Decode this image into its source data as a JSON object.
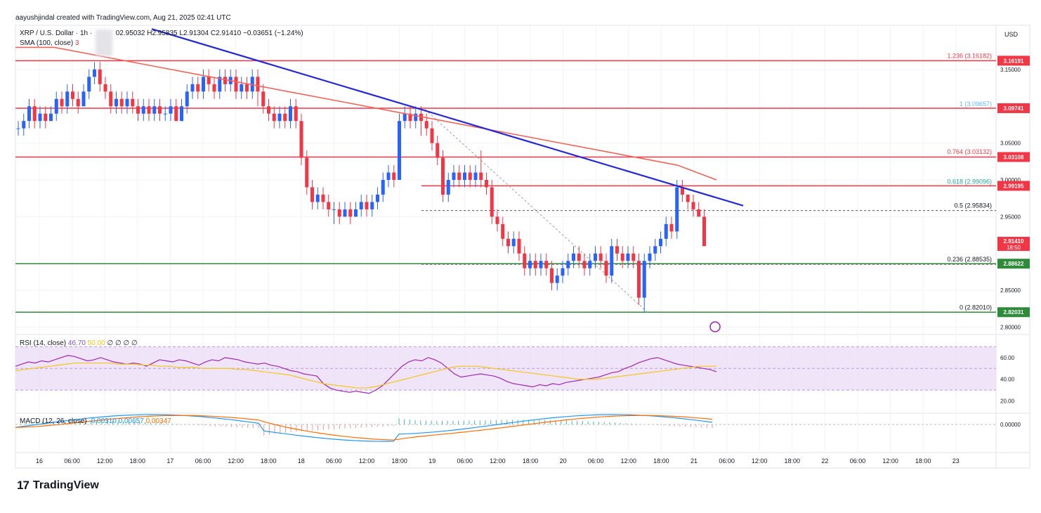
{
  "header": {
    "attribution": "aayushjindal created with TradingView.com, Aug 21, 2025 02:41 UTC"
  },
  "legend": {
    "symbol": "XRP / U.S. Dollar · 1h ·",
    "ohlc": "02.95032  H2.95835  L2.91304  C2.91410  −0.03651 (−1.24%)",
    "sma": "SMA (100, close)",
    "sma_val": "3"
  },
  "currency": "USD",
  "brand": {
    "logo": "17",
    "name": "TradingView"
  },
  "colors": {
    "up": "#2962ff",
    "down": "#f23645",
    "sma": "#f0645a",
    "trend": "#2429d6",
    "support": "#2e8b3a",
    "fib": "#808080",
    "rsi": "#9c27b0",
    "rsi_band": "#ead9f7",
    "macd": "#2196f3",
    "signal": "#ff6d00"
  },
  "chart_data": [
    {
      "type": "candlestick",
      "title": "XRP / U.S. Dollar · 1h",
      "ylim": [
        2.79,
        3.21
      ],
      "price_ticks": [
        "3.15000",
        "3.05000",
        "3.00000",
        "2.95000",
        "2.85000",
        "2.80000"
      ],
      "x_ticks": [
        "16",
        "06:00",
        "12:00",
        "18:00",
        "17",
        "06:00",
        "12:00",
        "18:00",
        "18",
        "06:00",
        "12:00",
        "18:00",
        "19",
        "06:00",
        "12:00",
        "18:00",
        "20",
        "06:00",
        "12:00",
        "18:00",
        "21",
        "06:00",
        "12:00",
        "18:00",
        "22",
        "06:00",
        "12:00",
        "18:00",
        "23"
      ],
      "horizontal_levels": [
        {
          "value": 3.16191,
          "label": "3.16191",
          "color": "red"
        },
        {
          "value": 3.09741,
          "label": "3.09741",
          "color": "red"
        },
        {
          "value": 3.03108,
          "label": "3.03108",
          "color": "red"
        },
        {
          "value": 2.99195,
          "label": "2.99195",
          "color": "red"
        },
        {
          "value": 2.88622,
          "label": "2.88622",
          "color": "green"
        },
        {
          "value": 2.82031,
          "label": "2.82031",
          "color": "green"
        }
      ],
      "fib_levels": [
        {
          "label": "1.236 (3.16182)",
          "value": 3.16182
        },
        {
          "label": "1 (3.09657)",
          "value": 3.09657
        },
        {
          "label": "0.764 (3.03132)",
          "value": 3.03132
        },
        {
          "label": "0.618 (2.99096)",
          "value": 2.99096
        },
        {
          "label": "0.5 (2.95834)",
          "value": 2.95834
        },
        {
          "label": "0.236 (2.88535)",
          "value": 2.88535
        },
        {
          "label": "0 (2.82010)",
          "value": 2.8201
        }
      ],
      "last_price": {
        "value": 2.9141,
        "label": "2.91410",
        "countdown": "18:50"
      },
      "candles": [
        [
          3.07,
          3.07,
          3.06,
          3.08
        ],
        [
          3.07,
          3.08,
          3.06,
          3.09
        ],
        [
          3.08,
          3.1,
          3.07,
          3.11
        ],
        [
          3.1,
          3.08,
          3.07,
          3.11
        ],
        [
          3.08,
          3.09,
          3.07,
          3.1
        ],
        [
          3.09,
          3.08,
          3.07,
          3.1
        ],
        [
          3.08,
          3.09,
          3.08,
          3.1
        ],
        [
          3.09,
          3.11,
          3.08,
          3.12
        ],
        [
          3.11,
          3.1,
          3.09,
          3.12
        ],
        [
          3.1,
          3.12,
          3.09,
          3.13
        ],
        [
          3.12,
          3.11,
          3.1,
          3.13
        ],
        [
          3.11,
          3.1,
          3.09,
          3.12
        ],
        [
          3.1,
          3.12,
          3.1,
          3.13
        ],
        [
          3.12,
          3.14,
          3.11,
          3.15
        ],
        [
          3.14,
          3.15,
          3.13,
          3.16
        ],
        [
          3.15,
          3.13,
          3.12,
          3.16
        ],
        [
          3.13,
          3.12,
          3.11,
          3.14
        ],
        [
          3.12,
          3.1,
          3.09,
          3.13
        ],
        [
          3.1,
          3.11,
          3.09,
          3.12
        ],
        [
          3.11,
          3.1,
          3.09,
          3.12
        ],
        [
          3.1,
          3.11,
          3.09,
          3.12
        ],
        [
          3.11,
          3.1,
          3.09,
          3.12
        ],
        [
          3.1,
          3.09,
          3.08,
          3.11
        ],
        [
          3.09,
          3.1,
          3.08,
          3.11
        ],
        [
          3.1,
          3.09,
          3.08,
          3.11
        ],
        [
          3.09,
          3.1,
          3.08,
          3.11
        ],
        [
          3.1,
          3.09,
          3.08,
          3.11
        ],
        [
          3.09,
          3.09,
          3.08,
          3.1
        ],
        [
          3.09,
          3.1,
          3.08,
          3.11
        ],
        [
          3.1,
          3.08,
          3.08,
          3.11
        ],
        [
          3.08,
          3.1,
          3.08,
          3.11
        ],
        [
          3.1,
          3.12,
          3.09,
          3.13
        ],
        [
          3.12,
          3.13,
          3.11,
          3.14
        ],
        [
          3.13,
          3.12,
          3.11,
          3.14
        ],
        [
          3.12,
          3.14,
          3.11,
          3.15
        ],
        [
          3.14,
          3.13,
          3.12,
          3.15
        ],
        [
          3.13,
          3.12,
          3.11,
          3.14
        ],
        [
          3.12,
          3.14,
          3.11,
          3.15
        ],
        [
          3.14,
          3.13,
          3.12,
          3.15
        ],
        [
          3.13,
          3.14,
          3.12,
          3.15
        ],
        [
          3.14,
          3.12,
          3.11,
          3.15
        ],
        [
          3.12,
          3.13,
          3.11,
          3.14
        ],
        [
          3.13,
          3.12,
          3.11,
          3.14
        ],
        [
          3.12,
          3.14,
          3.11,
          3.15
        ],
        [
          3.14,
          3.12,
          3.1,
          3.15
        ],
        [
          3.12,
          3.1,
          3.09,
          3.13
        ],
        [
          3.1,
          3.09,
          3.08,
          3.11
        ],
        [
          3.09,
          3.08,
          3.07,
          3.1
        ],
        [
          3.08,
          3.09,
          3.07,
          3.1
        ],
        [
          3.09,
          3.08,
          3.07,
          3.1
        ],
        [
          3.08,
          3.1,
          3.07,
          3.11
        ],
        [
          3.1,
          3.08,
          3.07,
          3.11
        ],
        [
          3.08,
          3.03,
          3.02,
          3.09
        ],
        [
          3.03,
          2.99,
          2.98,
          3.04
        ],
        [
          2.99,
          2.97,
          2.96,
          3.0
        ],
        [
          2.97,
          2.98,
          2.96,
          2.99
        ],
        [
          2.98,
          2.97,
          2.96,
          2.99
        ],
        [
          2.97,
          2.96,
          2.95,
          2.98
        ],
        [
          2.96,
          2.96,
          2.94,
          2.97
        ],
        [
          2.96,
          2.95,
          2.94,
          2.97
        ],
        [
          2.95,
          2.96,
          2.95,
          2.97
        ],
        [
          2.96,
          2.95,
          2.94,
          2.97
        ],
        [
          2.95,
          2.96,
          2.95,
          2.97
        ],
        [
          2.96,
          2.97,
          2.95,
          2.98
        ],
        [
          2.97,
          2.96,
          2.95,
          2.98
        ],
        [
          2.96,
          2.97,
          2.95,
          2.98
        ],
        [
          2.97,
          2.98,
          2.96,
          2.99
        ],
        [
          2.98,
          3.0,
          2.97,
          3.01
        ],
        [
          3.0,
          3.01,
          2.99,
          3.02
        ],
        [
          3.01,
          3.0,
          2.99,
          3.02
        ],
        [
          3.0,
          3.08,
          3.0,
          3.09
        ],
        [
          3.08,
          3.09,
          3.07,
          3.1
        ],
        [
          3.09,
          3.08,
          3.07,
          3.1
        ],
        [
          3.08,
          3.09,
          3.07,
          3.1
        ],
        [
          3.09,
          3.08,
          3.06,
          3.1
        ],
        [
          3.08,
          3.07,
          3.06,
          3.09
        ],
        [
          3.07,
          3.05,
          3.04,
          3.08
        ],
        [
          3.05,
          3.03,
          3.02,
          3.06
        ],
        [
          3.03,
          2.98,
          2.97,
          3.04
        ],
        [
          2.98,
          3.0,
          2.97,
          3.01
        ],
        [
          3.0,
          3.01,
          2.99,
          3.02
        ],
        [
          3.01,
          3.0,
          2.99,
          3.02
        ],
        [
          3.0,
          3.01,
          2.99,
          3.02
        ],
        [
          3.01,
          3.0,
          2.99,
          3.02
        ],
        [
          3.0,
          3.01,
          2.99,
          3.02
        ],
        [
          3.01,
          3.0,
          2.99,
          3.04
        ],
        [
          3.0,
          2.99,
          2.98,
          3.01
        ],
        [
          2.99,
          2.95,
          2.94,
          3.0
        ],
        [
          2.95,
          2.94,
          2.93,
          2.96
        ],
        [
          2.94,
          2.92,
          2.91,
          2.95
        ],
        [
          2.92,
          2.91,
          2.9,
          2.93
        ],
        [
          2.91,
          2.92,
          2.9,
          2.93
        ],
        [
          2.92,
          2.9,
          2.89,
          2.93
        ],
        [
          2.9,
          2.88,
          2.87,
          2.91
        ],
        [
          2.88,
          2.89,
          2.87,
          2.9
        ],
        [
          2.89,
          2.88,
          2.87,
          2.9
        ],
        [
          2.88,
          2.89,
          2.87,
          2.9
        ],
        [
          2.89,
          2.88,
          2.87,
          2.9
        ],
        [
          2.88,
          2.86,
          2.85,
          2.89
        ],
        [
          2.86,
          2.87,
          2.85,
          2.88
        ],
        [
          2.87,
          2.88,
          2.86,
          2.89
        ],
        [
          2.88,
          2.89,
          2.87,
          2.9
        ],
        [
          2.89,
          2.9,
          2.88,
          2.91
        ],
        [
          2.9,
          2.89,
          2.88,
          2.91
        ],
        [
          2.89,
          2.88,
          2.87,
          2.9
        ],
        [
          2.88,
          2.89,
          2.87,
          2.9
        ],
        [
          2.89,
          2.9,
          2.88,
          2.91
        ],
        [
          2.9,
          2.89,
          2.88,
          2.91
        ],
        [
          2.89,
          2.87,
          2.86,
          2.9
        ],
        [
          2.87,
          2.91,
          2.86,
          2.92
        ],
        [
          2.91,
          2.9,
          2.89,
          2.92
        ],
        [
          2.9,
          2.89,
          2.88,
          2.91
        ],
        [
          2.89,
          2.9,
          2.88,
          2.91
        ],
        [
          2.9,
          2.89,
          2.88,
          2.91
        ],
        [
          2.89,
          2.84,
          2.83,
          2.9
        ],
        [
          2.84,
          2.89,
          2.82,
          2.9
        ],
        [
          2.89,
          2.9,
          2.88,
          2.91
        ],
        [
          2.9,
          2.91,
          2.89,
          2.92
        ],
        [
          2.91,
          2.92,
          2.9,
          2.93
        ],
        [
          2.92,
          2.94,
          2.91,
          2.95
        ],
        [
          2.94,
          2.93,
          2.92,
          2.95
        ],
        [
          2.93,
          2.99,
          2.92,
          3.0
        ],
        [
          2.99,
          2.98,
          2.97,
          3.0
        ],
        [
          2.98,
          2.97,
          2.96,
          2.98
        ],
        [
          2.97,
          2.96,
          2.95,
          2.98
        ],
        [
          2.96,
          2.95,
          2.95,
          2.97
        ],
        [
          2.95,
          2.91,
          2.91,
          2.96
        ]
      ],
      "sma_path": [
        3.18,
        3.18,
        3.17,
        3.16,
        3.15,
        3.14,
        3.13,
        3.12,
        3.11,
        3.1,
        3.09,
        3.08,
        3.07,
        3.06,
        3.05,
        3.04,
        3.03,
        3.02,
        3.0
      ],
      "trendline": {
        "from": [
          3.2,
          0.145
        ],
        "to": [
          2.97,
          0.713
        ]
      }
    },
    {
      "type": "line",
      "title": "RSI (14, close)",
      "legend_values": [
        "46.70",
        "50.00",
        "∅",
        "∅",
        "∅",
        "∅"
      ],
      "ylim": [
        10,
        80
      ],
      "y_ticks": [
        "60.00",
        "40.00",
        "20.00"
      ],
      "rsi": [
        52,
        54,
        56,
        55,
        57,
        56,
        58,
        60,
        62,
        61,
        59,
        57,
        58,
        60,
        58,
        56,
        55,
        54,
        55,
        54,
        52,
        55,
        58,
        57,
        56,
        58,
        57,
        55,
        53,
        56,
        58,
        57,
        60,
        59,
        58,
        56,
        55,
        54,
        55,
        53,
        52,
        50,
        48,
        47,
        45,
        44,
        43,
        36,
        32,
        30,
        29,
        28,
        29,
        28,
        27,
        30,
        34,
        40,
        46,
        52,
        56,
        58,
        57,
        60,
        58,
        55,
        50,
        45,
        42,
        43,
        44,
        45,
        44,
        43,
        41,
        38,
        36,
        35,
        34,
        33,
        35,
        34,
        36,
        35,
        37,
        38,
        39,
        40,
        41,
        42,
        44,
        46,
        47,
        50,
        52,
        55,
        57,
        59,
        60,
        58,
        56,
        54,
        53,
        52,
        51,
        50,
        49,
        47
      ],
      "rsi_ma": [
        48,
        49,
        50,
        51,
        52,
        53,
        54,
        55,
        55,
        55,
        55,
        55,
        54,
        54,
        54,
        53,
        53,
        52,
        52,
        51,
        51,
        51,
        50,
        50,
        50,
        50,
        49,
        49,
        48,
        47,
        46,
        45,
        44,
        42,
        40,
        38,
        36,
        35,
        34,
        33,
        32,
        32,
        33,
        35,
        37,
        39,
        41,
        43,
        45,
        47,
        49,
        51,
        52,
        52,
        52,
        51,
        50,
        49,
        48,
        47,
        46,
        45,
        44,
        43,
        42,
        41,
        40,
        40,
        40,
        41,
        42,
        43,
        44,
        45,
        46,
        47,
        48,
        49,
        50,
        51,
        52,
        52,
        52
      ]
    },
    {
      "type": "line",
      "title": "MACD (12, 26, close)",
      "legend_values": [
        "-0.00310",
        "0.00657",
        "0.00347"
      ],
      "y_ticks": [
        "0.00000"
      ]
    }
  ]
}
